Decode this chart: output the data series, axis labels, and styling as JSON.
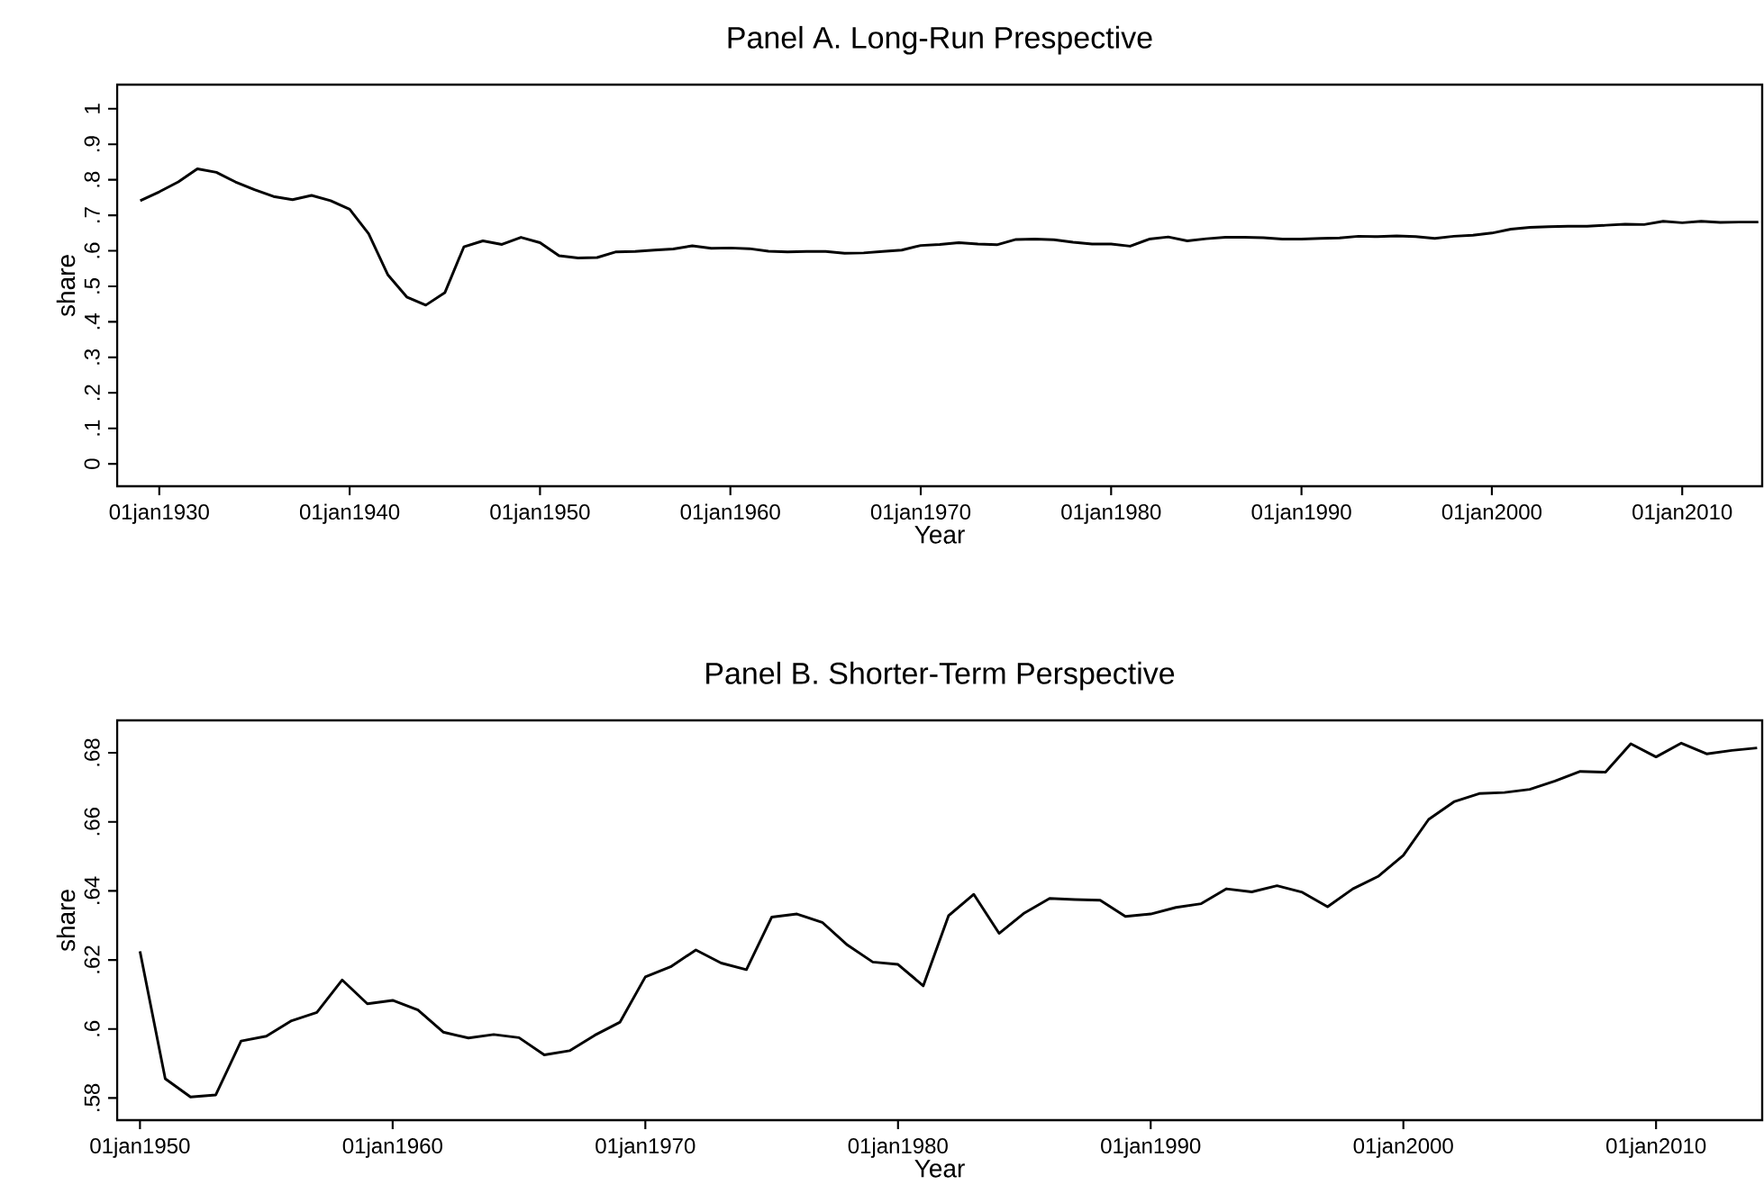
{
  "chart_data": [
    {
      "type": "line",
      "title": "Panel A. Long-Run Prespective",
      "xlabel": "Year",
      "ylabel": "share",
      "color": "#000000",
      "x": [
        "1929",
        "1930",
        "1931",
        "1932",
        "1933",
        "1934",
        "1935",
        "1936",
        "1937",
        "1938",
        "1939",
        "1940",
        "1941",
        "1942",
        "1943",
        "1944",
        "1945",
        "1946",
        "1947",
        "1948",
        "1949",
        "1950",
        "1951",
        "1952",
        "1953",
        "1954",
        "1955",
        "1956",
        "1957",
        "1958",
        "1959",
        "1960",
        "1961",
        "1962",
        "1963",
        "1964",
        "1965",
        "1966",
        "1967",
        "1968",
        "1969",
        "1970",
        "1971",
        "1972",
        "1973",
        "1974",
        "1975",
        "1976",
        "1977",
        "1978",
        "1979",
        "1980",
        "1981",
        "1982",
        "1983",
        "1984",
        "1985",
        "1986",
        "1987",
        "1988",
        "1989",
        "1990",
        "1991",
        "1992",
        "1993",
        "1994",
        "1995",
        "1996",
        "1997",
        "1998",
        "1999",
        "2000",
        "2001",
        "2002",
        "2003",
        "2004",
        "2005",
        "2006",
        "2007",
        "2008",
        "2009",
        "2010",
        "2011",
        "2012",
        "2013",
        "2014"
      ],
      "values": [
        0.741,
        0.766,
        0.794,
        0.831,
        0.821,
        0.794,
        0.772,
        0.753,
        0.744,
        0.756,
        0.741,
        0.717,
        0.648,
        0.533,
        0.47,
        0.447,
        0.482,
        0.611,
        0.628,
        0.618,
        0.638,
        0.623,
        0.586,
        0.58,
        0.581,
        0.597,
        0.598,
        0.602,
        0.605,
        0.614,
        0.607,
        0.608,
        0.606,
        0.599,
        0.597,
        0.598,
        0.598,
        0.593,
        0.594,
        0.598,
        0.602,
        0.615,
        0.618,
        0.623,
        0.619,
        0.617,
        0.632,
        0.633,
        0.631,
        0.624,
        0.619,
        0.619,
        0.613,
        0.633,
        0.639,
        0.628,
        0.634,
        0.638,
        0.638,
        0.637,
        0.633,
        0.633,
        0.635,
        0.636,
        0.641,
        0.64,
        0.642,
        0.64,
        0.635,
        0.641,
        0.644,
        0.65,
        0.661,
        0.666,
        0.668,
        0.669,
        0.669,
        0.672,
        0.675,
        0.674,
        0.683,
        0.679,
        0.683,
        0.68,
        0.681,
        0.681
      ],
      "xlim": [
        "1927-10-15",
        "2014-03-15"
      ],
      "ylim": [
        -0.063,
        1.068
      ],
      "xticks": [
        {
          "value": "1930-01-01",
          "label": "01jan1930"
        },
        {
          "value": "1940-01-01",
          "label": "01jan1940"
        },
        {
          "value": "1950-01-01",
          "label": "01jan1950"
        },
        {
          "value": "1960-01-01",
          "label": "01jan1960"
        },
        {
          "value": "1970-01-01",
          "label": "01jan1970"
        },
        {
          "value": "1980-01-01",
          "label": "01jan1980"
        },
        {
          "value": "1990-01-01",
          "label": "01jan1990"
        },
        {
          "value": "2000-01-01",
          "label": "01jan2000"
        },
        {
          "value": "2010-01-01",
          "label": "01jan2010"
        }
      ],
      "yticks": [
        0,
        {
          "value": 0.1,
          "label": ".1"
        },
        {
          "value": 0.2,
          "label": ".2"
        },
        {
          "value": 0.3,
          "label": ".3"
        },
        {
          "value": 0.4,
          "label": ".4"
        },
        {
          "value": 0.5,
          "label": ".5"
        },
        {
          "value": 0.6,
          "label": ".6"
        },
        {
          "value": 0.7,
          "label": ".7"
        },
        {
          "value": 0.8,
          "label": ".8"
        },
        {
          "value": 0.9,
          "label": ".9"
        },
        1
      ]
    },
    {
      "type": "line",
      "title": "Panel B. Shorter-Term Perspective",
      "xlabel": "Year",
      "ylabel": "share",
      "color": "#000000",
      "x": [
        "1950",
        "1951",
        "1952",
        "1953",
        "1954",
        "1955",
        "1956",
        "1957",
        "1958",
        "1959",
        "1960",
        "1961",
        "1962",
        "1963",
        "1964",
        "1965",
        "1966",
        "1967",
        "1968",
        "1969",
        "1970",
        "1971",
        "1972",
        "1973",
        "1974",
        "1975",
        "1976",
        "1977",
        "1978",
        "1979",
        "1980",
        "1981",
        "1982",
        "1983",
        "1984",
        "1985",
        "1986",
        "1987",
        "1988",
        "1989",
        "1990",
        "1991",
        "1992",
        "1993",
        "1994",
        "1995",
        "1996",
        "1997",
        "1998",
        "1999",
        "2000",
        "2001",
        "2002",
        "2003",
        "2004",
        "2005",
        "2006",
        "2007",
        "2008",
        "2009",
        "2010",
        "2011",
        "2012",
        "2013",
        "2014"
      ],
      "values": [
        0.6225,
        0.5856,
        0.5803,
        0.5809,
        0.5965,
        0.5979,
        0.6024,
        0.6048,
        0.6142,
        0.6073,
        0.6083,
        0.6055,
        0.5991,
        0.5974,
        0.5984,
        0.5975,
        0.5925,
        0.5937,
        0.5982,
        0.602,
        0.6151,
        0.618,
        0.6229,
        0.6191,
        0.6172,
        0.6324,
        0.6333,
        0.6309,
        0.6243,
        0.6194,
        0.6187,
        0.6125,
        0.6328,
        0.639,
        0.6277,
        0.6336,
        0.6378,
        0.6375,
        0.6373,
        0.6326,
        0.6333,
        0.6352,
        0.6363,
        0.6406,
        0.6397,
        0.6415,
        0.6396,
        0.6354,
        0.6406,
        0.6442,
        0.6503,
        0.6607,
        0.6658,
        0.6682,
        0.6685,
        0.6694,
        0.6718,
        0.6746,
        0.6744,
        0.6826,
        0.6788,
        0.6828,
        0.6797,
        0.6807,
        0.6814
      ],
      "xlim": [
        "1949-02-05",
        "2014-03-15"
      ],
      "ylim": [
        0.5736,
        0.6894
      ],
      "xticks": [
        {
          "value": "1950-01-01",
          "label": "01jan1950"
        },
        {
          "value": "1960-01-01",
          "label": "01jan1960"
        },
        {
          "value": "1970-01-01",
          "label": "01jan1970"
        },
        {
          "value": "1980-01-01",
          "label": "01jan1980"
        },
        {
          "value": "1990-01-01",
          "label": "01jan1990"
        },
        {
          "value": "2000-01-01",
          "label": "01jan2000"
        },
        {
          "value": "2010-01-01",
          "label": "01jan2010"
        }
      ],
      "yticks": [
        {
          "value": 0.58,
          "label": ".58"
        },
        {
          "value": 0.6,
          "label": ".6"
        },
        {
          "value": 0.62,
          "label": ".62"
        },
        {
          "value": 0.64,
          "label": ".64"
        },
        {
          "value": 0.66,
          "label": ".66"
        },
        {
          "value": 0.68,
          "label": ".68"
        }
      ]
    }
  ]
}
